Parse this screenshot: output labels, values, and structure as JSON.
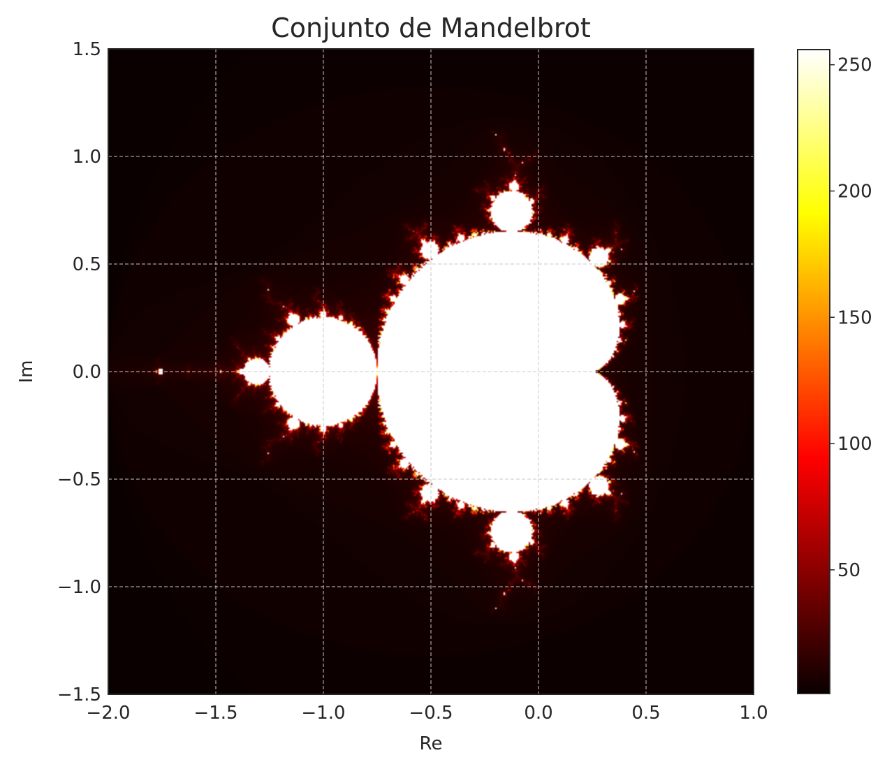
{
  "chart_data": {
    "type": "heatmap",
    "title": "Conjunto de Mandelbrot",
    "xlabel": "Re",
    "ylabel": "Im",
    "xlim": [
      -2.0,
      1.0
    ],
    "ylim": [
      -1.5,
      1.5
    ],
    "x_ticks": [
      -2.0,
      -1.5,
      -1.0,
      -0.5,
      0.0,
      0.5,
      1.0
    ],
    "x_tick_labels": [
      "−2.0",
      "−1.5",
      "−1.0",
      "−0.5",
      "0.0",
      "0.5",
      "1.0"
    ],
    "y_ticks": [
      1.5,
      1.0,
      0.5,
      0.0,
      -0.5,
      -1.0,
      -1.5
    ],
    "y_tick_labels": [
      "1.5",
      "1.0",
      "0.5",
      "0.0",
      "−0.5",
      "−1.0",
      "−1.5"
    ],
    "max_iterations": 256,
    "colormap": "hot",
    "colorbar": {
      "range": [
        1,
        256
      ],
      "ticks": [
        50,
        100,
        150,
        200,
        250
      ],
      "tick_labels": [
        "50",
        "100",
        "150",
        "200",
        "250"
      ]
    },
    "grid": true,
    "grid_style": "dashed"
  }
}
